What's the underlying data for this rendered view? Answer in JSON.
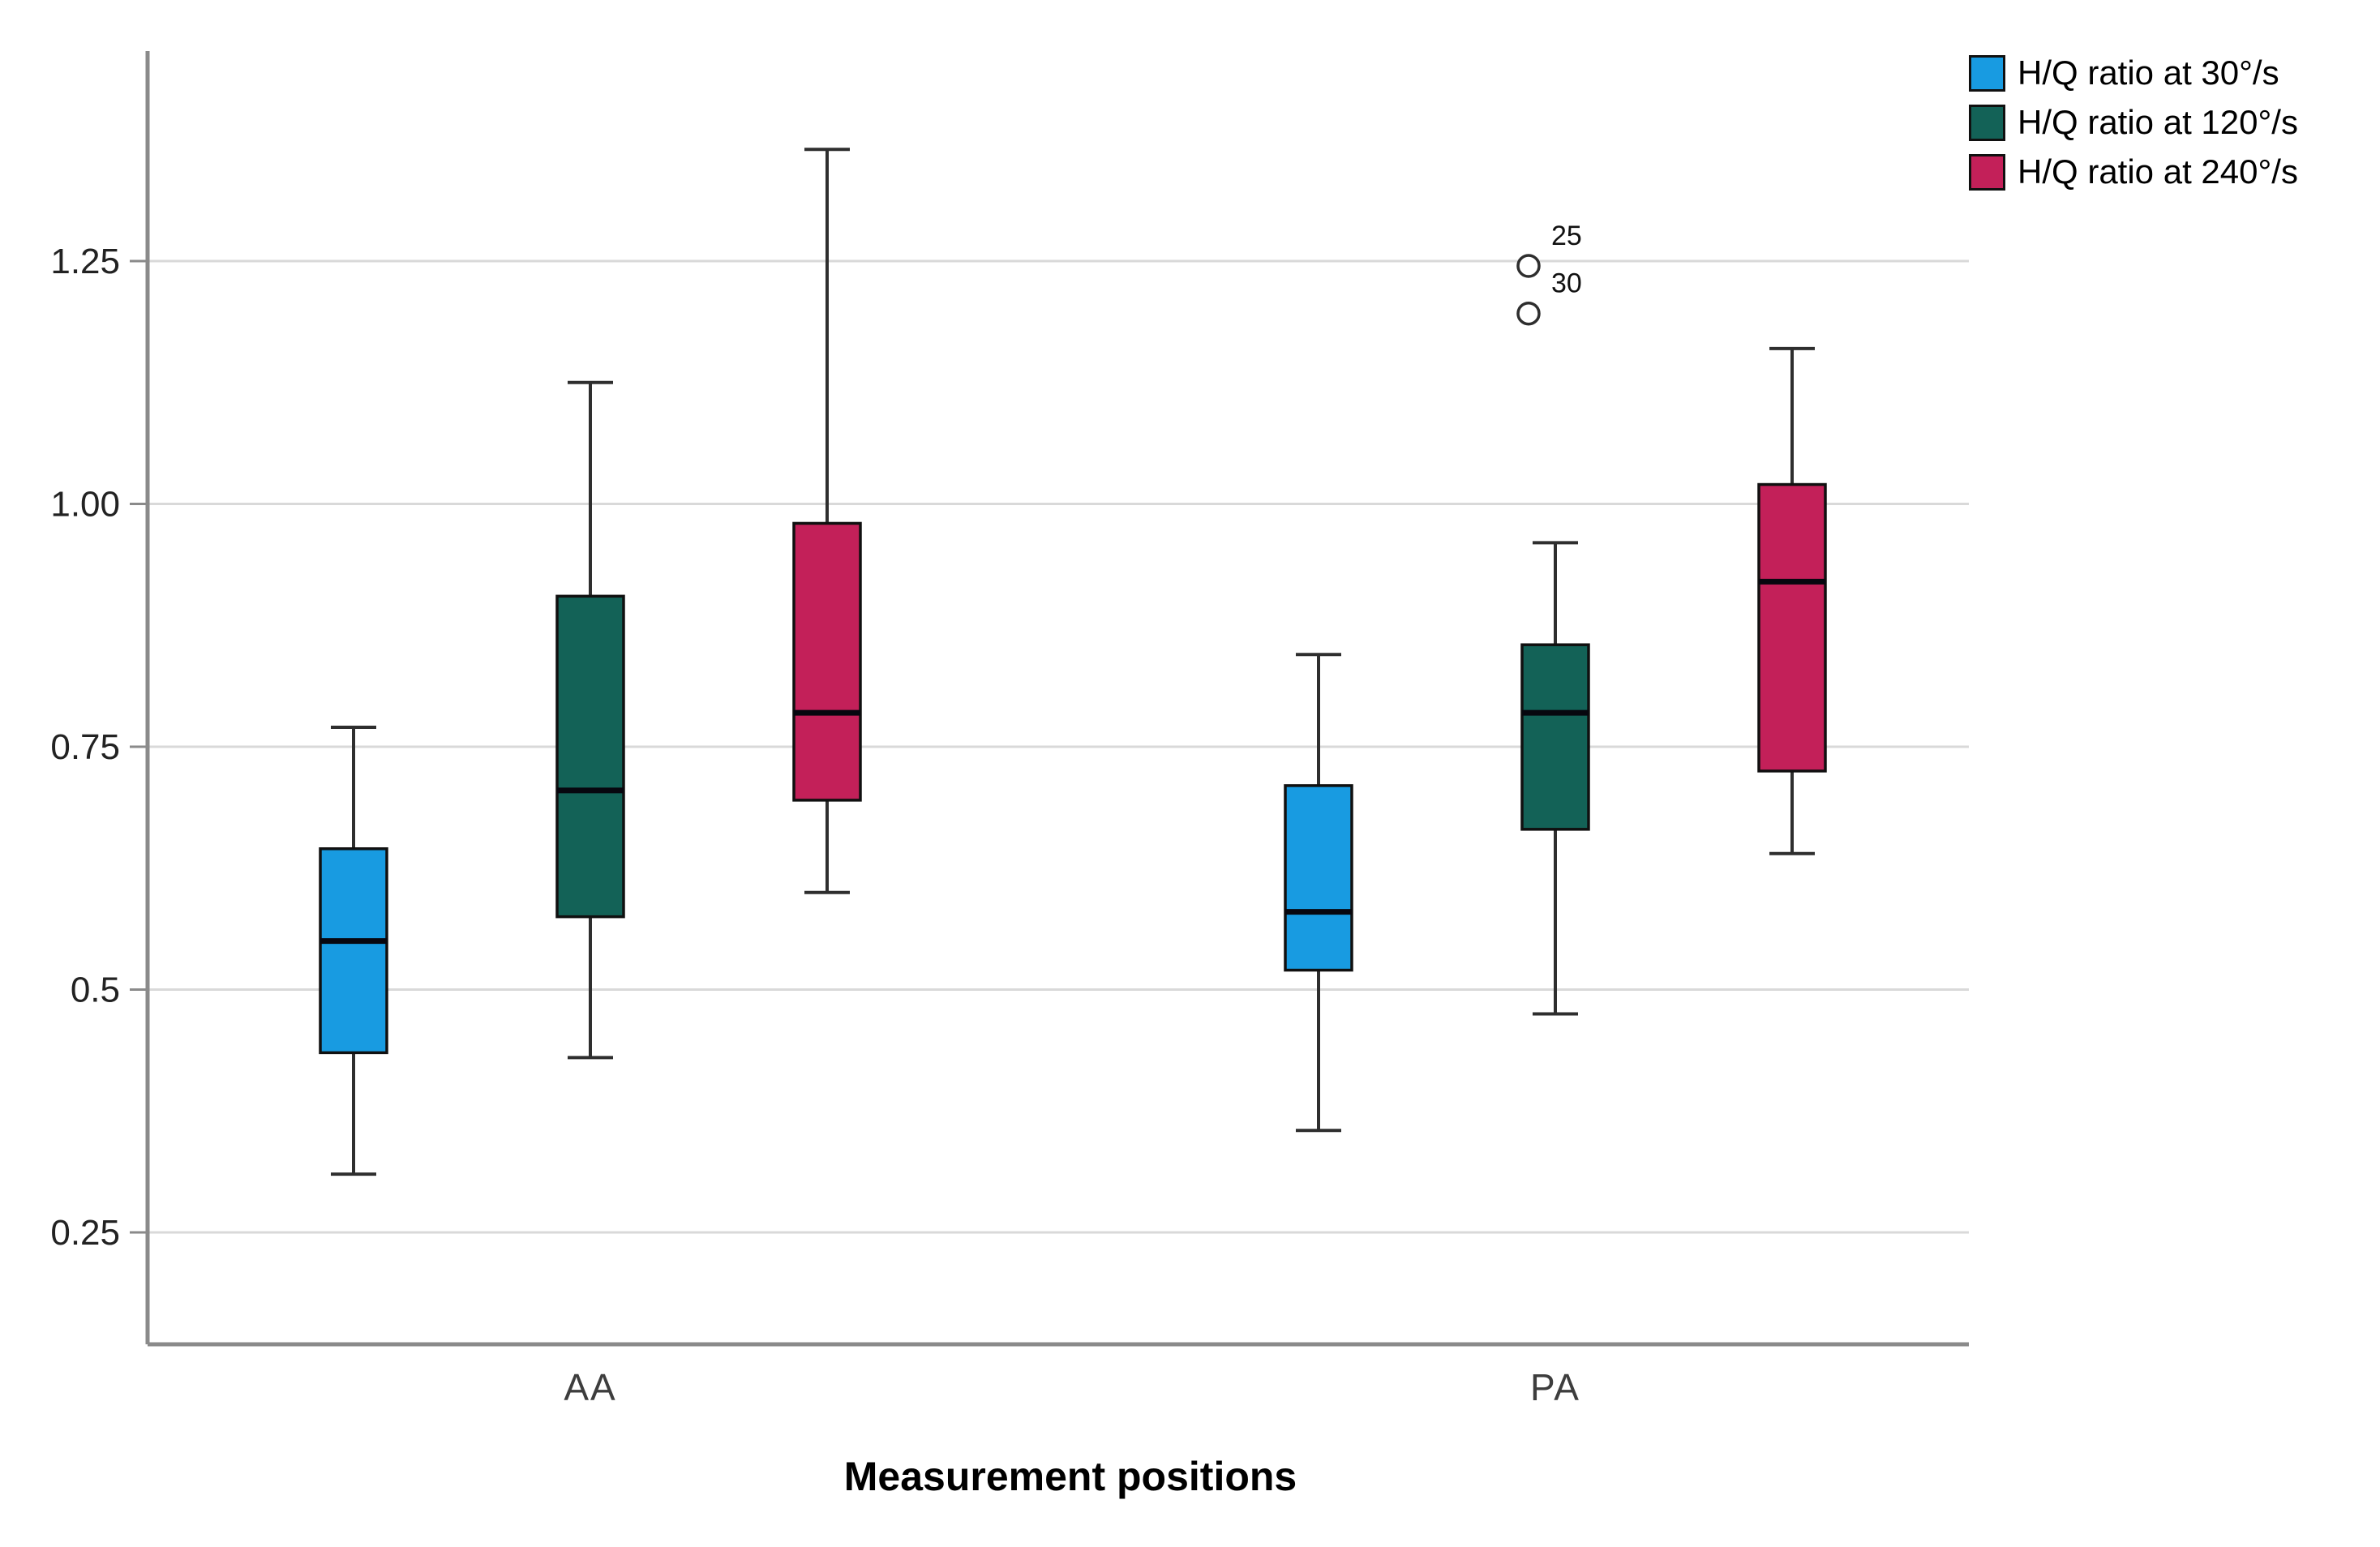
{
  "chart_data": {
    "type": "boxplot",
    "title": "",
    "xlabel": "Measurement positions",
    "ylabel": "",
    "categories": [
      "AA",
      "PA"
    ],
    "y_ticks": [
      {
        "value": 1.25,
        "label": "1.25"
      },
      {
        "value": 1.0,
        "label": "1.00"
      },
      {
        "value": 0.75,
        "label": "0.75"
      },
      {
        "value": 0.5,
        "label": "0.5"
      },
      {
        "value": 0.25,
        "label": "0.25"
      }
    ],
    "y_range": [
      0.135,
      1.465
    ],
    "grid": true,
    "legend_position": "top-right",
    "series": [
      {
        "name": "H/Q ratio at 30°/s",
        "color": "#189BE1",
        "boxes": [
          {
            "category": "AA",
            "min": 0.31,
            "q1": 0.435,
            "median": 0.55,
            "q3": 0.645,
            "max": 0.77,
            "outliers": []
          },
          {
            "category": "PA",
            "min": 0.355,
            "q1": 0.52,
            "median": 0.58,
            "q3": 0.71,
            "max": 0.845,
            "outliers": []
          }
        ]
      },
      {
        "name": "H/Q ratio at 120°/s",
        "color": "#136257",
        "boxes": [
          {
            "category": "AA",
            "min": 0.43,
            "q1": 0.575,
            "median": 0.705,
            "q3": 0.905,
            "max": 1.125,
            "outliers": []
          },
          {
            "category": "PA",
            "min": 0.475,
            "q1": 0.665,
            "median": 0.785,
            "q3": 0.855,
            "max": 0.96,
            "outliers": [
              {
                "value": 1.245,
                "label": "25"
              },
              {
                "value": 1.196,
                "label": "30"
              }
            ]
          }
        ]
      },
      {
        "name": "H/Q ratio at 240°/s",
        "color": "#C32059",
        "boxes": [
          {
            "category": "AA",
            "min": 0.6,
            "q1": 0.695,
            "median": 0.785,
            "q3": 0.98,
            "max": 1.365,
            "outliers": []
          },
          {
            "category": "PA",
            "min": 0.64,
            "q1": 0.725,
            "median": 0.92,
            "q3": 1.02,
            "max": 1.16,
            "outliers": []
          }
        ]
      }
    ]
  }
}
